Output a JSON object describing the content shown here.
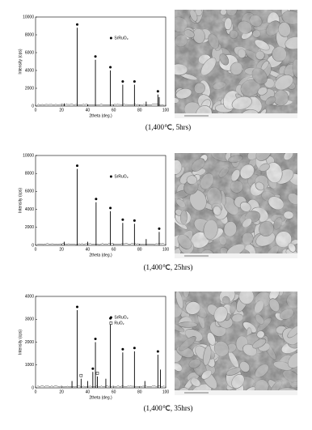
{
  "chart_data": [
    {
      "type": "stem",
      "caption": "(1,400℃, 5hrs)",
      "xlabel": "2theta (deg.)",
      "ylabel": "Intensity (cps)",
      "xlim": [
        0,
        100
      ],
      "ylim": [
        0,
        10000
      ],
      "xticks": [
        0,
        20,
        40,
        60,
        80,
        100
      ],
      "yticks": [
        0,
        2000,
        4000,
        6000,
        8000,
        10000
      ],
      "legend": "upper right",
      "color": "#000000",
      "x": [
        22,
        40,
        85,
        95
      ],
      "values": [
        300,
        200,
        500,
        1000
      ],
      "series": [
        {
          "name": "SrRuO₃",
          "marker": "dot",
          "x": [
            32,
            46,
            57.5,
            67,
            76,
            94
          ],
          "values": [
            8800,
            5200,
            4000,
            2400,
            2400,
            1300
          ]
        }
      ]
    },
    {
      "type": "stem",
      "caption": "(1,400℃, 25hrs)",
      "xlabel": "2theta (deg.)",
      "ylabel": "Intensity (cps)",
      "xlim": [
        0,
        100
      ],
      "ylim": [
        0,
        10000
      ],
      "xticks": [
        0,
        20,
        40,
        60,
        80,
        100
      ],
      "yticks": [
        0,
        2000,
        4000,
        6000,
        8000,
        10000
      ],
      "legend": "upper right",
      "color": "#000000",
      "x": [
        22,
        40,
        85
      ],
      "values": [
        400,
        400,
        700
      ],
      "series": [
        {
          "name": "SrRuO₃",
          "marker": "dot",
          "x": [
            32,
            46.5,
            57.5,
            67,
            76,
            95
          ],
          "values": [
            8500,
            4800,
            3800,
            2500,
            2400,
            1500
          ]
        }
      ]
    },
    {
      "type": "stem",
      "caption": "(1,400℃, 35hrs)",
      "xlabel": "2theta (deg.)",
      "ylabel": "Intensity (cps)",
      "xlim": [
        0,
        100
      ],
      "ylim": [
        0,
        4000
      ],
      "xticks": [
        0,
        20,
        40,
        60,
        80,
        100
      ],
      "yticks": [
        0,
        1000,
        2000,
        3000,
        4000
      ],
      "legend": "upper right",
      "color": "#000000",
      "x": [
        28,
        40,
        54,
        84,
        96
      ],
      "values": [
        300,
        300,
        400,
        300,
        800
      ],
      "series": [
        {
          "name": "SrRuO₃",
          "marker": "dot",
          "x": [
            32,
            44,
            46,
            57.5,
            67,
            76,
            94
          ],
          "values": [
            3400,
            700,
            2000,
            2900,
            1550,
            1600,
            1450
          ]
        },
        {
          "name": "RuO₂",
          "marker": "square",
          "x": [
            35,
            47.5
          ],
          "values": [
            400,
            500
          ]
        }
      ]
    }
  ]
}
